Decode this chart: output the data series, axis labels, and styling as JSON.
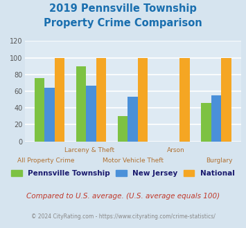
{
  "title_line1": "2019 Pennsville Township",
  "title_line2": "Property Crime Comparison",
  "title_color": "#1a6faf",
  "categories": [
    "All Property Crime",
    "Larceny & Theft",
    "Motor Vehicle Theft",
    "Arson",
    "Burglary"
  ],
  "x_labels_row1": [
    "",
    "Larceny & Theft",
    "",
    "Arson",
    ""
  ],
  "x_labels_row2": [
    "All Property Crime",
    "",
    "Motor Vehicle Theft",
    "",
    "Burglary"
  ],
  "series": {
    "Pennsville Township": [
      76,
      90,
      30,
      0,
      46
    ],
    "New Jersey": [
      64,
      67,
      53,
      0,
      55
    ],
    "National": [
      100,
      100,
      100,
      100,
      100
    ]
  },
  "colors": {
    "Pennsville Township": "#7dc242",
    "New Jersey": "#4a90d9",
    "National": "#f5a623"
  },
  "ylim": [
    0,
    120
  ],
  "yticks": [
    0,
    20,
    40,
    60,
    80,
    100,
    120
  ],
  "background_color": "#d6e4ef",
  "plot_bg_color": "#deeaf3",
  "grid_color": "#ffffff",
  "footnote1": "Compared to U.S. average. (U.S. average equals 100)",
  "footnote2": "© 2024 CityRating.com - https://www.cityrating.com/crime-statistics/",
  "footnote1_color": "#c0392b",
  "footnote2_color": "#888888",
  "legend_label_color": "#1a1a6e",
  "xlabel_color": "#b07030"
}
